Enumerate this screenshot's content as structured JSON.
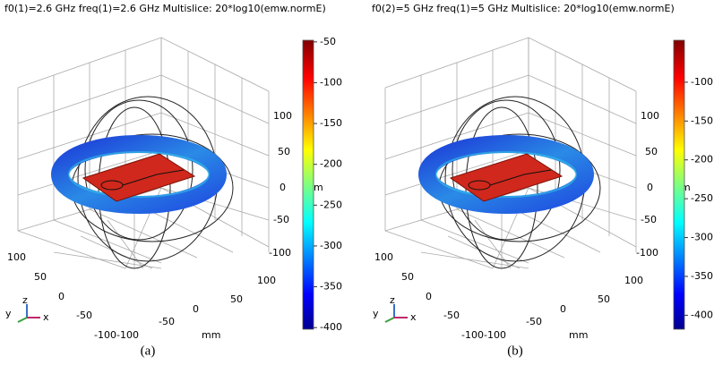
{
  "chart_data": [
    {
      "type": "multislice-3d",
      "title": "f0(1)=2.6 GHz freq(1)=2.6 GHz  Multislice: 20*log10(emw.normE)",
      "caption": "(a)",
      "colorbar": {
        "lim": [
          -48,
          -402
        ],
        "ticks": [
          -50,
          -100,
          -150,
          -200,
          -250,
          -300,
          -350,
          -400
        ]
      },
      "zticks": [
        100,
        50,
        0,
        -50,
        -100
      ],
      "yticks": [
        100,
        50,
        0,
        -50,
        -100
      ],
      "xticks": [
        100,
        50,
        0,
        -50,
        -100
      ],
      "xlabel": "mm",
      "zlabel": "m",
      "triad": [
        "z",
        "y",
        "x"
      ]
    },
    {
      "type": "multislice-3d",
      "title": "f0(2)=5 GHz freq(1)=5 GHz  Multislice: 20*log10(emw.normE)",
      "caption": "(b)",
      "colorbar": {
        "lim": [
          -46,
          -418
        ],
        "ticks": [
          -100,
          -150,
          -200,
          -250,
          -300,
          -350,
          -400
        ]
      },
      "zticks": [
        100,
        50,
        0,
        -50,
        -100
      ],
      "yticks": [
        100,
        50,
        0,
        -50,
        -100
      ],
      "xticks": [
        100,
        50,
        0,
        -50,
        -100
      ],
      "xlabel": "mm",
      "zlabel": "m",
      "triad": [
        "z",
        "y",
        "x"
      ]
    }
  ]
}
